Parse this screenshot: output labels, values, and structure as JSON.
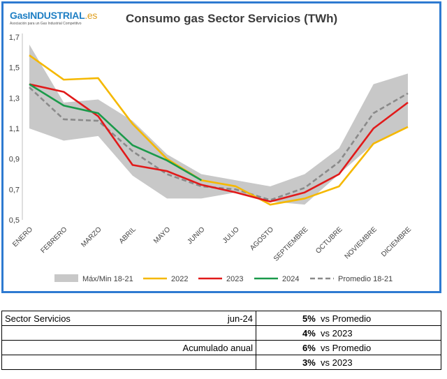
{
  "logo": {
    "name": "GasINDUSTRIAL",
    "tld": ".es",
    "tagline": "Asociación para un Gas Industrial Competitivo"
  },
  "chart_data": {
    "type": "line",
    "title": "Consumo gas Sector Servicios (TWh)",
    "categories": [
      "ENERO",
      "FEBRERO",
      "MARZO",
      "ABRIL",
      "MAYO",
      "JUNIO",
      "JULIO",
      "AGOSTO",
      "SEPTIEMBRE",
      "OCTUBRE",
      "NOVIEMBRE",
      "DICIEMBRE"
    ],
    "ylim": [
      0.5,
      1.7
    ],
    "yticks": [
      "0,5",
      "0,7",
      "0,9",
      "1,1",
      "1,3",
      "1,5",
      "1,7"
    ],
    "band": {
      "name": "Máx/Min 18-21",
      "color": "#c8c8c8",
      "max": [
        1.65,
        1.27,
        1.29,
        1.15,
        0.93,
        0.8,
        0.76,
        0.72,
        0.8,
        0.97,
        1.39,
        1.46
      ],
      "min": [
        1.1,
        1.02,
        1.05,
        0.79,
        0.64,
        0.64,
        0.68,
        0.62,
        0.6,
        0.8,
        1.0,
        1.11
      ]
    },
    "series": [
      {
        "name": "2022",
        "color": "#f5b800",
        "dash": false,
        "values": [
          1.58,
          1.42,
          1.43,
          1.13,
          0.9,
          0.76,
          0.72,
          0.6,
          0.64,
          0.72,
          1.0,
          1.11
        ]
      },
      {
        "name": "2023",
        "color": "#e11a1a",
        "dash": false,
        "values": [
          1.39,
          1.34,
          1.18,
          0.86,
          0.82,
          0.73,
          0.68,
          0.62,
          0.68,
          0.8,
          1.1,
          1.27
        ]
      },
      {
        "name": "2024",
        "color": "#1a9a4a",
        "dash": false,
        "values": [
          1.39,
          1.25,
          1.2,
          0.99,
          0.89,
          0.76,
          null,
          null,
          null,
          null,
          null,
          null
        ]
      },
      {
        "name": "Promedio 18-21",
        "color": "#8a8a8a",
        "dash": true,
        "values": [
          1.37,
          1.16,
          1.15,
          0.95,
          0.8,
          0.72,
          0.7,
          0.63,
          0.71,
          0.88,
          1.2,
          1.33
        ]
      }
    ],
    "grid": false,
    "legend": "bottom"
  },
  "summary": {
    "sector": "Sector Servicios",
    "period": "jun-24",
    "cumulative_label": "Acumulado anual",
    "rows": [
      {
        "pct": "5%",
        "text": "vs Promedio"
      },
      {
        "pct": "4%",
        "text": "vs 2023"
      },
      {
        "pct": "6%",
        "text": "vs Promedio"
      },
      {
        "pct": "3%",
        "text": "vs 2023"
      }
    ]
  }
}
